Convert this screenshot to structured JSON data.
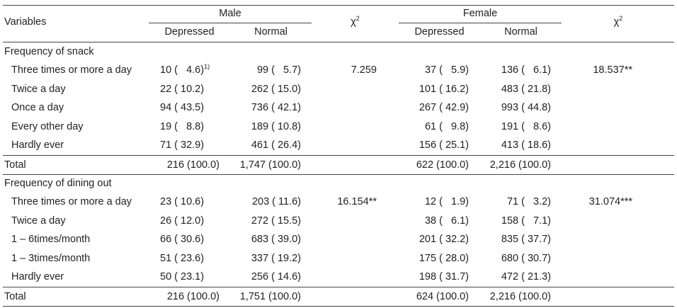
{
  "header": {
    "variables": "Variables",
    "male": "Male",
    "female": "Female",
    "chi2": "χ",
    "chi2_sup": "2",
    "depressed": "Depressed",
    "normal": "Normal"
  },
  "sections": [
    {
      "title": "Frequency of snack",
      "rows": [
        {
          "label": "Three times or more a day",
          "m_dep": "10 (   4.6)",
          "m_dep_sup": "1)",
          "m_norm": "99 (   5.7)",
          "m_chi": "7.259",
          "f_dep": "37 (   5.9)",
          "f_norm": "136 (   6.1)",
          "f_chi": "18.537**"
        },
        {
          "label": "Twice a day",
          "m_dep": "22 ( 10.2)",
          "m_dep_sup": "",
          "m_norm": "262 ( 15.0)",
          "m_chi": "",
          "f_dep": "101 ( 16.2)",
          "f_norm": "483 ( 21.8)",
          "f_chi": ""
        },
        {
          "label": "Once a day",
          "m_dep": "94 ( 43.5)",
          "m_dep_sup": "",
          "m_norm": "736 ( 42.1)",
          "m_chi": "",
          "f_dep": "267 ( 42.9)",
          "f_norm": "993 ( 44.8)",
          "f_chi": ""
        },
        {
          "label": "Every other day",
          "m_dep": "19 (   8.8)",
          "m_dep_sup": "",
          "m_norm": "189 ( 10.8)",
          "m_chi": "",
          "f_dep": "61 (   9.8)",
          "f_norm": "191 (   8.6)",
          "f_chi": ""
        },
        {
          "label": "Hardly ever",
          "m_dep": "71 ( 32.9)",
          "m_dep_sup": "",
          "m_norm": "461 ( 26.4)",
          "m_chi": "",
          "f_dep": "156 ( 25.1)",
          "f_norm": "413 ( 18.6)",
          "f_chi": ""
        }
      ],
      "total": {
        "label": "Total",
        "m_dep": "216 (100.0)",
        "m_norm": "1,747 (100.0)",
        "f_dep": "622 (100.0)",
        "f_norm": "2,216 (100.0)"
      }
    },
    {
      "title": "Frequency of dining out",
      "rows": [
        {
          "label": "Three times or more a day",
          "m_dep": "23 ( 10.6)",
          "m_dep_sup": "",
          "m_norm": "203 ( 11.6)",
          "m_chi": "16.154**",
          "f_dep": "12 (   1.9)",
          "f_norm": "71 (   3.2)",
          "f_chi": "31.074***"
        },
        {
          "label": "Twice a day",
          "m_dep": "26 ( 12.0)",
          "m_dep_sup": "",
          "m_norm": "272 ( 15.5)",
          "m_chi": "",
          "f_dep": "38 (   6.1)",
          "f_norm": "158 (   7.1)",
          "f_chi": ""
        },
        {
          "label": "1 – 6times/month",
          "m_dep": "66 ( 30.6)",
          "m_dep_sup": "",
          "m_norm": "683 ( 39.0)",
          "m_chi": "",
          "f_dep": "201 ( 32.2)",
          "f_norm": "835 ( 37.7)",
          "f_chi": ""
        },
        {
          "label": "1 – 3times/month",
          "m_dep": "51 ( 23.6)",
          "m_dep_sup": "",
          "m_norm": "337 ( 19.2)",
          "m_chi": "",
          "f_dep": "175 ( 28.0)",
          "f_norm": "680 ( 30.7)",
          "f_chi": ""
        },
        {
          "label": "Hardly ever",
          "m_dep": "50 ( 23.1)",
          "m_dep_sup": "",
          "m_norm": "256 ( 14.6)",
          "m_chi": "",
          "f_dep": "198 ( 31.7)",
          "f_norm": "472 ( 21.3)",
          "f_chi": ""
        }
      ],
      "total": {
        "label": "Total",
        "m_dep": "216 (100.0)",
        "m_norm": "1,751 (100.0)",
        "f_dep": "624 (100.0)",
        "f_norm": "2,216 (100.0)"
      }
    }
  ]
}
